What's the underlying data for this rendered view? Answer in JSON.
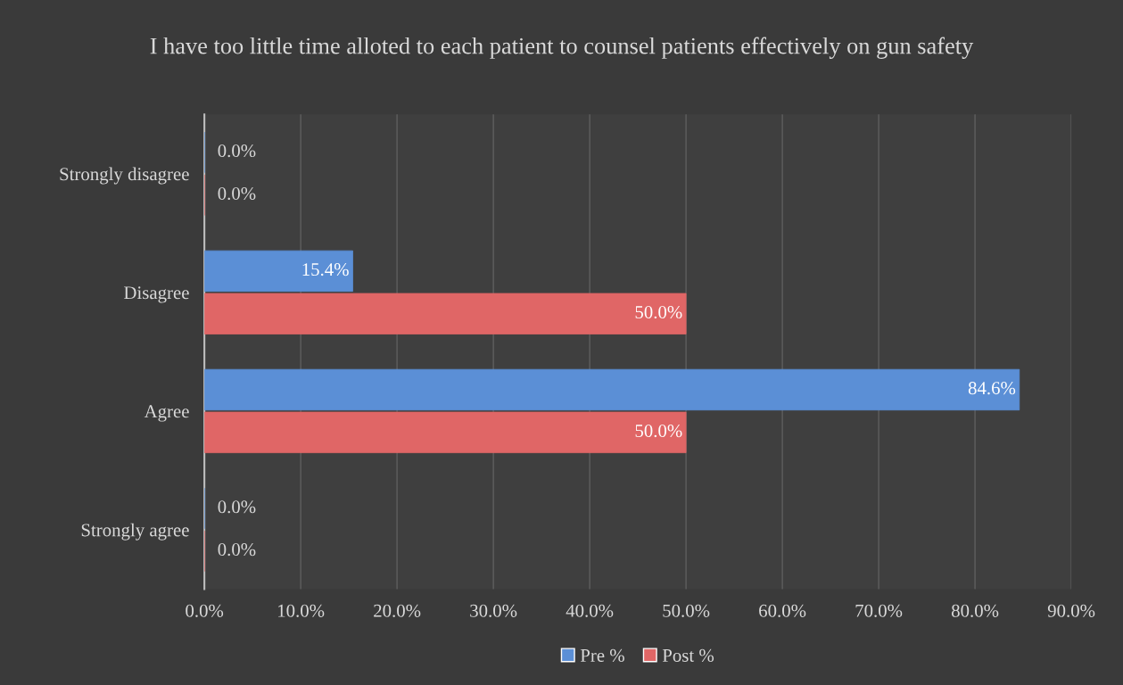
{
  "chart_data": {
    "type": "bar",
    "orientation": "horizontal",
    "title": "I have too little time alloted to each patient to counsel patients effectively on gun safety",
    "categories": [
      "Strongly disagree",
      "Disagree",
      "Agree",
      "Strongly agree"
    ],
    "series": [
      {
        "name": "Pre %",
        "color": "#5b8fd6",
        "values": [
          0,
          15.4,
          84.6,
          0
        ],
        "value_labels": [
          "0.0%",
          "15.4%",
          "84.6%",
          "0.0%"
        ]
      },
      {
        "name": "Post %",
        "color": "#e06666",
        "values": [
          0,
          50,
          50,
          0
        ],
        "value_labels": [
          "0.0%",
          "50.0%",
          "50.0%",
          "0.0%"
        ]
      }
    ],
    "xlim": [
      0,
      90
    ],
    "xticks": [
      {
        "value": 0,
        "label": "0.0%"
      },
      {
        "value": 10,
        "label": "10.0%"
      },
      {
        "value": 20,
        "label": "20.0%"
      },
      {
        "value": 30,
        "label": "30.0%"
      },
      {
        "value": 40,
        "label": "40.0%"
      },
      {
        "value": 50,
        "label": "50.0%"
      },
      {
        "value": 60,
        "label": "60.0%"
      },
      {
        "value": 70,
        "label": "70.0%"
      },
      {
        "value": 80,
        "label": "80.0%"
      },
      {
        "value": 90,
        "label": "90.0%"
      }
    ],
    "grid": "x",
    "legend": "bottom"
  }
}
